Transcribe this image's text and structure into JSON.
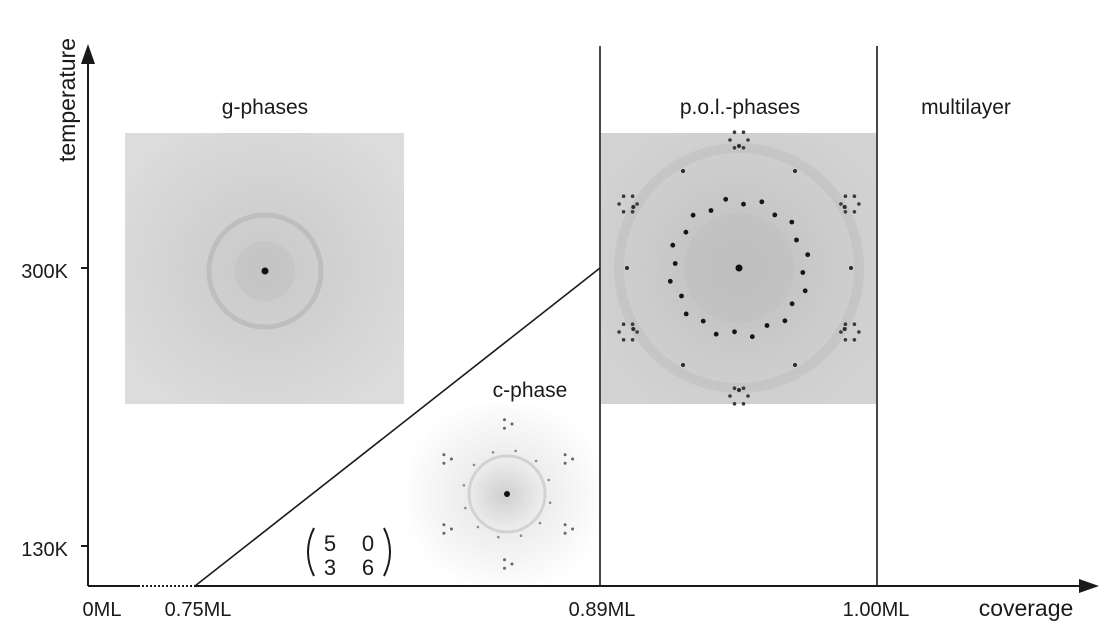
{
  "axes": {
    "x_label": "coverage",
    "y_label": "temperature",
    "x_ticks": [
      "0ML",
      "0.75ML",
      "0.89ML",
      "1.00ML"
    ],
    "y_ticks": [
      "300K",
      "130K"
    ]
  },
  "regions": {
    "g_phases": "g-phases",
    "c_phase": "c-phase",
    "pol_phases": "p.o.l.-phases",
    "multilayer": "multilayer"
  },
  "matrix": {
    "row1": [
      "5",
      "0"
    ],
    "row2": [
      "3",
      "6"
    ]
  },
  "colors": {
    "line": "#1a1a1a",
    "pattern_bg_g": "#d6d6d6",
    "pattern_bg_pol": "#cfcfcf",
    "pattern_bg_c": "#f4f4f4",
    "spot": "#111111"
  }
}
